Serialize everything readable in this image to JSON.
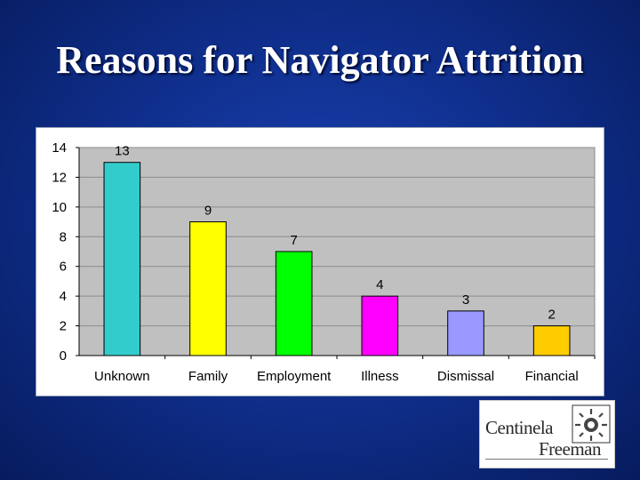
{
  "slide": {
    "title": "Reasons for Navigator Attrition"
  },
  "logo": {
    "line1": "Centinela",
    "line2": "Freeman"
  },
  "colors": {
    "background": "#10308f",
    "plot_area": "#c0c0c0",
    "gridline": "#8c8c8c"
  },
  "chart_data": {
    "type": "bar",
    "title": "",
    "xlabel": "",
    "ylabel": "",
    "categories": [
      "Unknown",
      "Family",
      "Employment",
      "Illness",
      "Dismissal",
      "Financial"
    ],
    "values": [
      13,
      9,
      7,
      4,
      3,
      2
    ],
    "bar_colors": [
      "#33cccc",
      "#ffff00",
      "#00ff00",
      "#ff00ff",
      "#9999ff",
      "#ffcc00"
    ],
    "ylim": [
      0,
      14
    ],
    "yticks": [
      0,
      2,
      4,
      6,
      8,
      10,
      12,
      14
    ],
    "data_labels": [
      "13",
      "9",
      "7",
      "4",
      "3",
      "2"
    ],
    "grid": true,
    "legend": "none"
  }
}
